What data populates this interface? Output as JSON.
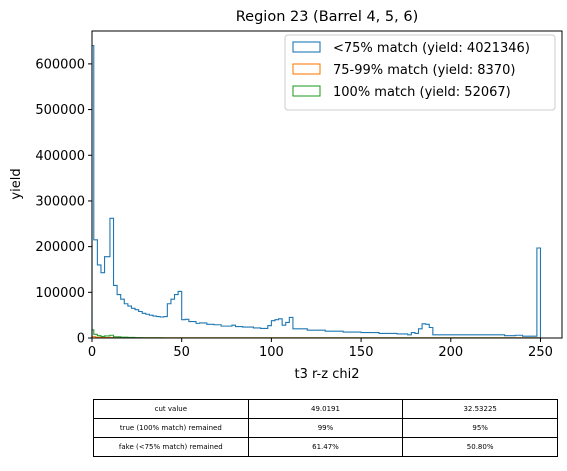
{
  "chart_data": {
    "type": "step-histogram",
    "title": "Region 23 (Barrel 4, 5, 6)",
    "xlabel": "t3 r-z chi2",
    "ylabel": "yield",
    "xlim": [
      0,
      262
    ],
    "ylim": [
      0,
      672000
    ],
    "xticks": [
      0,
      50,
      100,
      150,
      200,
      250
    ],
    "yticks": [
      0,
      100000,
      200000,
      300000,
      400000,
      500000,
      600000
    ],
    "legend_position": "upper-right",
    "series": [
      {
        "name": "<75% match (yield: 4021346)",
        "color": "#1f77b4",
        "steps": [
          [
            0,
            640000
          ],
          [
            1,
            215000
          ],
          [
            3,
            160000
          ],
          [
            5,
            143000
          ],
          [
            7,
            178000
          ],
          [
            10,
            262000
          ],
          [
            12,
            115000
          ],
          [
            14,
            95000
          ],
          [
            16,
            85000
          ],
          [
            18,
            75000
          ],
          [
            20,
            70000
          ],
          [
            22,
            65000
          ],
          [
            24,
            62000
          ],
          [
            26,
            58000
          ],
          [
            28,
            54000
          ],
          [
            30,
            52000
          ],
          [
            32,
            50000
          ],
          [
            34,
            48000
          ],
          [
            36,
            47000
          ],
          [
            38,
            46000
          ],
          [
            40,
            47000
          ],
          [
            42,
            75000
          ],
          [
            44,
            85000
          ],
          [
            46,
            95000
          ],
          [
            48,
            102000
          ],
          [
            50,
            40000
          ],
          [
            52,
            41000
          ],
          [
            54,
            36000
          ],
          [
            58,
            32000
          ],
          [
            60,
            33000
          ],
          [
            64,
            30000
          ],
          [
            68,
            29000
          ],
          [
            72,
            26000
          ],
          [
            78,
            28000
          ],
          [
            80,
            25000
          ],
          [
            84,
            24000
          ],
          [
            90,
            22000
          ],
          [
            94,
            21000
          ],
          [
            98,
            27000
          ],
          [
            100,
            38000
          ],
          [
            102,
            40000
          ],
          [
            104,
            42000
          ],
          [
            106,
            28000
          ],
          [
            108,
            34000
          ],
          [
            110,
            45000
          ],
          [
            112,
            20000
          ],
          [
            120,
            17000
          ],
          [
            130,
            15000
          ],
          [
            140,
            13000
          ],
          [
            150,
            12000
          ],
          [
            160,
            10000
          ],
          [
            170,
            9000
          ],
          [
            176,
            7000
          ],
          [
            178,
            12000
          ],
          [
            180,
            10000
          ],
          [
            182,
            20000
          ],
          [
            184,
            31000
          ],
          [
            186,
            30000
          ],
          [
            188,
            23000
          ],
          [
            190,
            7000
          ],
          [
            230,
            5000
          ],
          [
            236,
            6000
          ],
          [
            240,
            4000
          ],
          [
            248,
            197000
          ],
          [
            250,
            197000
          ]
        ]
      },
      {
        "name": "75-99% match (yield: 8370)",
        "color": "#ff7f0e",
        "steps": [
          [
            0,
            3000
          ],
          [
            2,
            1500
          ],
          [
            6,
            1000
          ],
          [
            12,
            500
          ],
          [
            20,
            300
          ],
          [
            250,
            300
          ]
        ]
      },
      {
        "name": "100% match (yield: 52067)",
        "color": "#2ca02c",
        "steps": [
          [
            0,
            18000
          ],
          [
            1,
            8000
          ],
          [
            3,
            5000
          ],
          [
            5,
            3500
          ],
          [
            7,
            4500
          ],
          [
            10,
            6000
          ],
          [
            12,
            2500
          ],
          [
            16,
            1800
          ],
          [
            20,
            1200
          ],
          [
            24,
            800
          ],
          [
            28,
            300
          ],
          [
            40,
            100
          ],
          [
            250,
            100
          ]
        ]
      }
    ]
  },
  "table": {
    "rows": [
      [
        "cut value",
        "49.0191",
        "32.53225"
      ],
      [
        "true (100% match) remained",
        "99%",
        "95%"
      ],
      [
        "fake (<75% match) remained",
        "61.47%",
        "50.80%"
      ]
    ]
  }
}
